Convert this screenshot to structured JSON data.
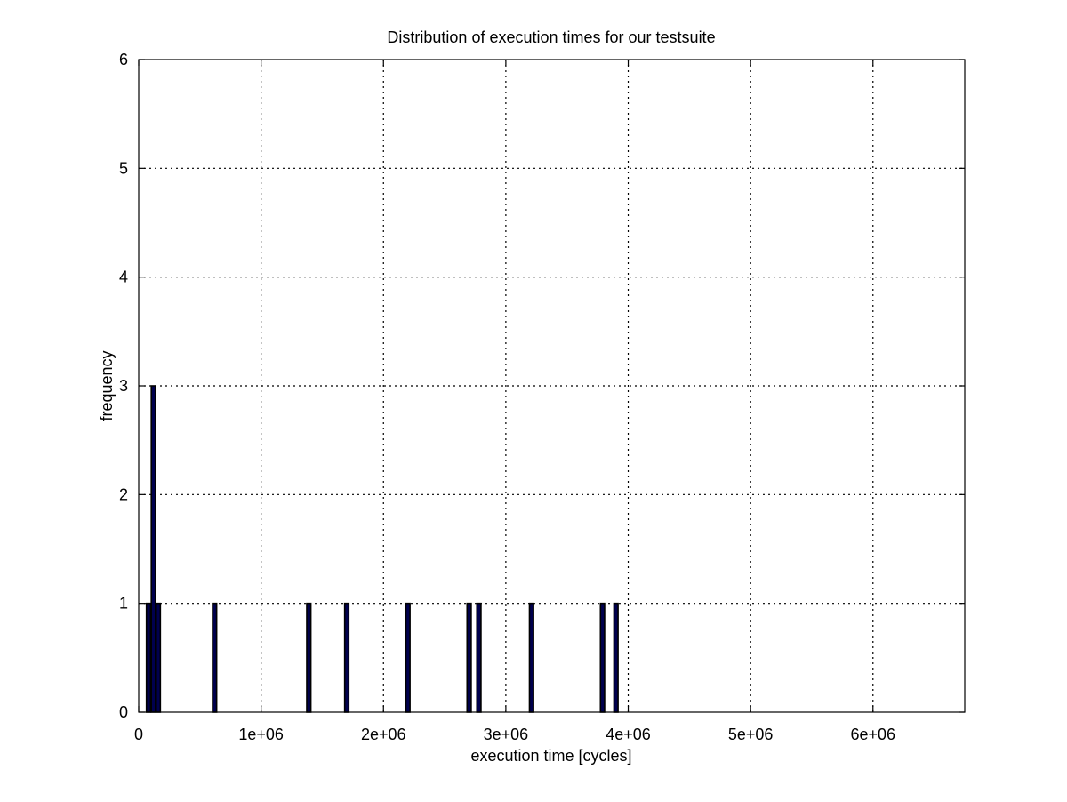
{
  "chart_data": {
    "type": "bar",
    "title": "Distribution of execution times for our testsuite",
    "xlabel": "execution time [cycles]",
    "ylabel": "frequency",
    "xlim": [
      0,
      6750000
    ],
    "ylim": [
      0,
      6
    ],
    "grid": true,
    "bar_color": "#00004e",
    "xticks": [
      0,
      1000000,
      2000000,
      3000000,
      4000000,
      5000000,
      6000000
    ],
    "xtick_labels": [
      "0",
      "1e+06",
      "2e+06",
      "3e+06",
      "4e+06",
      "5e+06",
      "6e+06"
    ],
    "yticks": [
      0,
      1,
      2,
      3,
      4,
      5,
      6
    ],
    "ytick_labels": [
      "0",
      "1",
      "2",
      "3",
      "4",
      "5",
      "6"
    ],
    "bin_width": 33750,
    "x": [
      80000,
      120000,
      160000,
      620000,
      1390000,
      1700000,
      2200000,
      2700000,
      2780000,
      3210000,
      3790000,
      3900000
    ],
    "values": [
      1,
      3,
      1,
      1,
      1,
      1,
      1,
      1,
      1,
      1,
      1,
      1
    ]
  }
}
